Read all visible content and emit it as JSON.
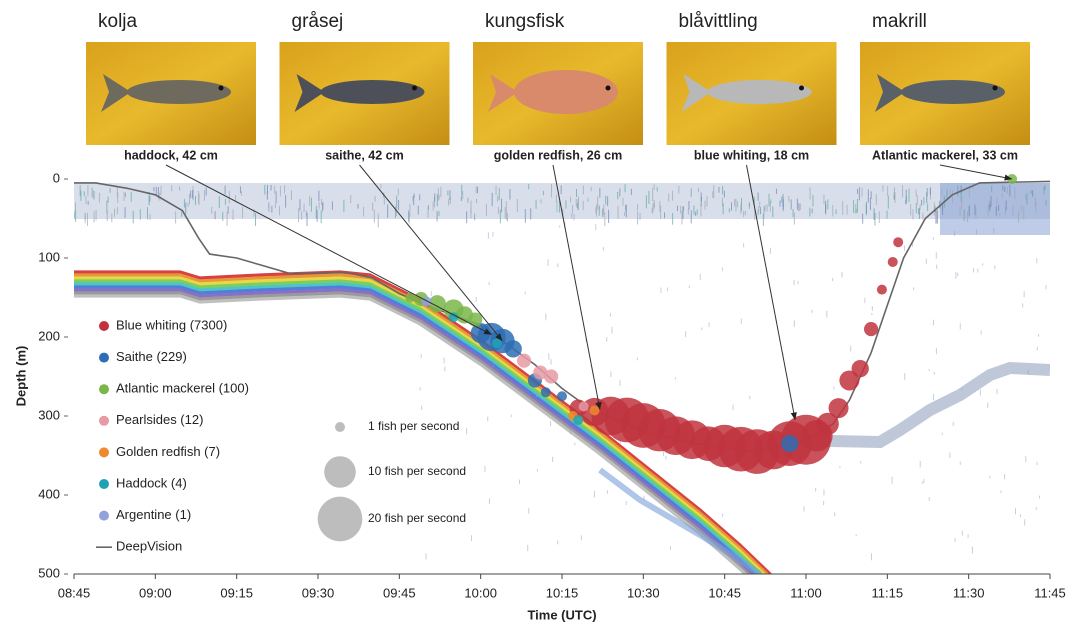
{
  "chart_data": {
    "type": "bubble",
    "x_label": "Time (UTC)",
    "y_label": "Depth (m)",
    "xlim": [
      "08:45",
      "11:45"
    ],
    "xticks": [
      "08:45",
      "09:00",
      "09:15",
      "09:30",
      "09:45",
      "10:00",
      "10:15",
      "10:30",
      "10:45",
      "11:00",
      "11:15",
      "11:30",
      "11:45"
    ],
    "ylim": [
      0,
      500
    ],
    "yticks": [
      0,
      100,
      200,
      300,
      400,
      500
    ],
    "y_inverted": true,
    "series": [
      {
        "name": "Blue whiting (7300)",
        "color": "#c0343e",
        "x": [
          "10:18",
          "10:21",
          "10:24",
          "10:27",
          "10:30",
          "10:33",
          "10:36",
          "10:39",
          "10:42",
          "10:45",
          "10:48",
          "10:51",
          "10:54",
          "10:57",
          "11:00",
          "11:02",
          "11:04",
          "11:06",
          "11:08",
          "11:10",
          "11:12",
          "11:14",
          "11:16",
          "11:17"
        ],
        "values": [
          290,
          295,
          300,
          305,
          312,
          318,
          325,
          330,
          335,
          338,
          342,
          345,
          343,
          335,
          330,
          325,
          310,
          290,
          255,
          240,
          190,
          140,
          105,
          80
        ],
        "sizes": [
          3,
          8,
          15,
          20,
          20,
          18,
          15,
          15,
          12,
          18,
          20,
          20,
          15,
          20,
          25,
          10,
          5,
          4,
          4,
          3,
          2,
          1,
          1,
          1
        ]
      },
      {
        "name": "Saithe (229)",
        "color": "#2e6db4",
        "x": [
          "10:00",
          "10:02",
          "10:04",
          "10:06",
          "10:10",
          "10:12",
          "10:15",
          "10:57"
        ],
        "values": [
          195,
          200,
          205,
          215,
          255,
          270,
          275,
          335
        ],
        "sizes": [
          4,
          8,
          6,
          3,
          2,
          1,
          1,
          3
        ]
      },
      {
        "name": "Atlantic mackerel (100)",
        "color": "#7ab648",
        "x": [
          "09:47",
          "09:49",
          "09:52",
          "09:55",
          "09:57",
          "09:59",
          "11:38"
        ],
        "values": [
          150,
          152,
          158,
          165,
          172,
          178,
          0
        ],
        "sizes": [
          1,
          2,
          3,
          4,
          3,
          2,
          1
        ]
      },
      {
        "name": "Pearlsides (12)",
        "color": "#e89aa5",
        "x": [
          "10:08",
          "10:11",
          "10:13",
          "10:19"
        ],
        "values": [
          230,
          245,
          250,
          288
        ],
        "sizes": [
          2,
          2,
          2,
          1
        ]
      },
      {
        "name": "Golden redfish (7)",
        "color": "#ee8a2c",
        "x": [
          "10:21",
          "10:17"
        ],
        "values": [
          293,
          300
        ],
        "sizes": [
          1,
          1
        ]
      },
      {
        "name": "Haddock (4)",
        "color": "#1fa3b4",
        "x": [
          "09:55",
          "10:03",
          "10:18"
        ],
        "values": [
          175,
          208,
          305
        ],
        "sizes": [
          1,
          1,
          1
        ]
      },
      {
        "name": "Argentine (1)",
        "color": "#8fa2dc",
        "x": [
          "09:50"
        ],
        "values": [
          155
        ],
        "sizes": [
          1
        ]
      }
    ],
    "track": {
      "name": "DeepVision",
      "color": "#666666",
      "x": [
        "08:45",
        "08:49",
        "08:55",
        "09:00",
        "09:05",
        "09:08",
        "09:10",
        "09:15",
        "09:20",
        "09:25",
        "09:35",
        "09:40",
        "09:45",
        "09:50",
        "10:00",
        "10:05",
        "10:10",
        "10:15",
        "10:20",
        "10:25",
        "10:30",
        "10:40",
        "10:50",
        "10:55",
        "11:00",
        "11:05",
        "11:08",
        "11:12",
        "11:15",
        "11:18",
        "11:22",
        "11:27",
        "11:32",
        "11:45"
      ],
      "values": [
        5,
        5,
        12,
        20,
        40,
        75,
        95,
        100,
        110,
        120,
        118,
        125,
        145,
        160,
        185,
        210,
        235,
        265,
        290,
        305,
        320,
        335,
        345,
        340,
        330,
        310,
        280,
        220,
        160,
        100,
        50,
        20,
        5,
        3
      ]
    },
    "size_legend": [
      {
        "value": 1,
        "label": "1 fish per second"
      },
      {
        "value": 10,
        "label": "10 fish per second"
      },
      {
        "value": 20,
        "label": "20 fish per second"
      }
    ],
    "photos": [
      {
        "label": "kolja",
        "caption": "haddock, 42 cm",
        "x": "10:02",
        "y": 197
      },
      {
        "label": "gråsej",
        "caption": "saithe, 42 cm",
        "x": "10:04",
        "y": 205
      },
      {
        "label": "kungsfisk",
        "caption": "golden redfish, 26 cm",
        "x": "10:22",
        "y": 292
      },
      {
        "label": "blåvittling",
        "caption": "blue whiting, 18 cm",
        "x": "10:58",
        "y": 305
      },
      {
        "label": "makrill",
        "caption": "Atlantic mackerel, 33 cm",
        "x": "11:38",
        "y": 0
      }
    ]
  }
}
